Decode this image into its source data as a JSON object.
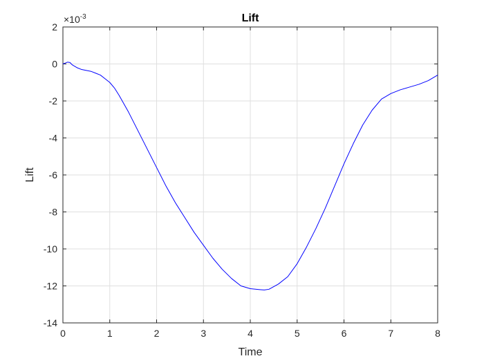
{
  "chart_data": {
    "type": "line",
    "title": "Lift",
    "xlabel": "Time",
    "ylabel": "Lift",
    "exponent_base": "×10",
    "exponent_power": "-3",
    "xlim": [
      0,
      8
    ],
    "ylim": [
      -14,
      2
    ],
    "x_ticks": [
      0,
      1,
      2,
      3,
      4,
      5,
      6,
      7,
      8
    ],
    "y_ticks": [
      -14,
      -12,
      -10,
      -8,
      -6,
      -4,
      -2,
      0,
      2
    ],
    "x_tick_labels": [
      "0",
      "1",
      "2",
      "3",
      "4",
      "5",
      "6",
      "7",
      "8"
    ],
    "y_tick_labels": [
      "-14",
      "-12",
      "-10",
      "-8",
      "-6",
      "-4",
      "-2",
      "0",
      "2"
    ],
    "grid": true,
    "line_color": "#0000ff",
    "series": [
      {
        "x": [
          0,
          0.05,
          0.1,
          0.15,
          0.2,
          0.3,
          0.4,
          0.5,
          0.6,
          0.7,
          0.8,
          0.9,
          1.0,
          1.1,
          1.2,
          1.4,
          1.6,
          1.8,
          2.0,
          2.2,
          2.4,
          2.6,
          2.8,
          3.0,
          3.2,
          3.4,
          3.6,
          3.8,
          4.0,
          4.2,
          4.3,
          4.4,
          4.6,
          4.8,
          5.0,
          5.2,
          5.4,
          5.6,
          5.8,
          6.0,
          6.2,
          6.4,
          6.6,
          6.8,
          7.0,
          7.2,
          7.4,
          7.6,
          7.8,
          7.9,
          8.0
        ],
        "y": [
          0,
          0.05,
          0.1,
          0.08,
          -0.05,
          -0.2,
          -0.3,
          -0.35,
          -0.4,
          -0.5,
          -0.6,
          -0.8,
          -1.0,
          -1.3,
          -1.7,
          -2.6,
          -3.6,
          -4.6,
          -5.6,
          -6.6,
          -7.5,
          -8.3,
          -9.1,
          -9.8,
          -10.5,
          -11.1,
          -11.6,
          -12.0,
          -12.15,
          -12.2,
          -12.22,
          -12.18,
          -11.9,
          -11.5,
          -10.8,
          -9.9,
          -8.9,
          -7.8,
          -6.6,
          -5.4,
          -4.3,
          -3.3,
          -2.5,
          -1.9,
          -1.6,
          -1.4,
          -1.25,
          -1.1,
          -0.9,
          -0.75,
          -0.6
        ]
      }
    ]
  }
}
